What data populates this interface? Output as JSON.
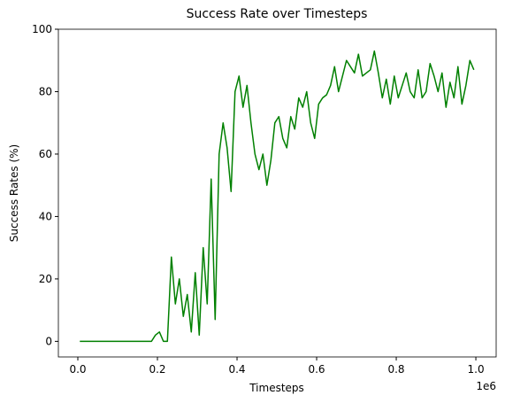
{
  "chart_data": {
    "type": "line",
    "title": "Success Rate over Timesteps",
    "xlabel": "Timesteps",
    "ylabel": "Success Rates (%)",
    "x_offset_label": "1e6",
    "x": [
      5000,
      15000,
      25000,
      35000,
      45000,
      55000,
      65000,
      75000,
      85000,
      95000,
      105000,
      115000,
      125000,
      135000,
      145000,
      155000,
      165000,
      175000,
      185000,
      195000,
      205000,
      215000,
      225000,
      235000,
      245000,
      255000,
      265000,
      275000,
      285000,
      295000,
      305000,
      315000,
      325000,
      335000,
      345000,
      355000,
      365000,
      375000,
      385000,
      395000,
      405000,
      415000,
      425000,
      435000,
      445000,
      455000,
      465000,
      475000,
      485000,
      495000,
      505000,
      515000,
      525000,
      535000,
      545000,
      555000,
      565000,
      575000,
      585000,
      595000,
      605000,
      615000,
      625000,
      635000,
      645000,
      655000,
      665000,
      675000,
      685000,
      695000,
      705000,
      715000,
      725000,
      735000,
      745000,
      755000,
      765000,
      775000,
      785000,
      795000,
      805000,
      815000,
      825000,
      835000,
      845000,
      855000,
      865000,
      875000,
      885000,
      895000,
      905000,
      915000,
      925000,
      935000,
      945000,
      955000,
      965000,
      975000,
      985000,
      995000
    ],
    "series": [
      {
        "name": "Success Rate",
        "color": "#008000",
        "values": [
          0,
          0,
          0,
          0,
          0,
          0,
          0,
          0,
          0,
          0,
          0,
          0,
          0,
          0,
          0,
          0,
          0,
          0,
          0,
          2,
          3,
          0,
          0,
          27,
          12,
          20,
          8,
          15,
          3,
          22,
          2,
          30,
          12,
          52,
          7,
          60,
          70,
          62,
          48,
          80,
          85,
          75,
          82,
          70,
          60,
          55,
          60,
          50,
          58,
          70,
          72,
          65,
          62,
          72,
          68,
          78,
          75,
          80,
          70,
          65,
          76,
          78,
          79,
          82,
          88,
          80,
          85,
          90,
          88,
          86,
          92,
          85,
          86,
          87,
          93,
          86,
          78,
          84,
          76,
          85,
          78,
          82,
          86,
          80,
          78,
          87,
          78,
          80,
          89,
          85,
          80,
          86,
          75,
          83,
          78,
          88,
          76,
          82,
          90,
          87
        ]
      }
    ],
    "xlim": [
      -48900,
      1051000
    ],
    "xticks": [
      {
        "value": 0,
        "label": "0.0"
      },
      {
        "value": 200000,
        "label": "0.2"
      },
      {
        "value": 400000,
        "label": "0.4"
      },
      {
        "value": 600000,
        "label": "0.6"
      },
      {
        "value": 800000,
        "label": "0.8"
      },
      {
        "value": 1000000,
        "label": "1.0"
      }
    ],
    "ylim": [
      -5,
      100
    ],
    "yticks": [
      0,
      20,
      40,
      60,
      80,
      100
    ],
    "grid": false
  }
}
